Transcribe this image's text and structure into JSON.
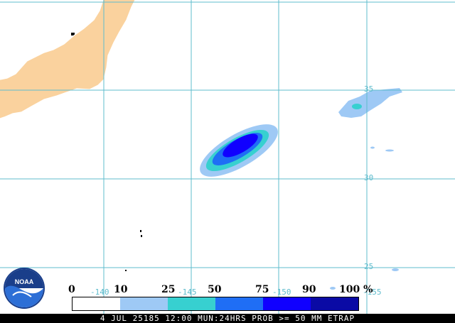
{
  "map": {
    "land_color": "#fad29e",
    "grid_color": "#5fbccd",
    "latitude_labels": [
      "35",
      "30",
      "25"
    ],
    "longitude_labels": [
      "-140",
      "-145",
      "-150",
      "-155"
    ]
  },
  "legend": {
    "ticks": [
      "0",
      "10",
      "25",
      "50",
      "75",
      "90",
      "100 %"
    ],
    "colors": [
      "#ffffff",
      "#9ec9f5",
      "#37d0d0",
      "#1f6ef5",
      "#1000ff",
      "#0a0aa5"
    ]
  },
  "caption": "4 JUL 25185 12:00 MUN:24HRS PROB >= 50 MM ETRAP",
  "logo": {
    "text": "NOAA"
  }
}
